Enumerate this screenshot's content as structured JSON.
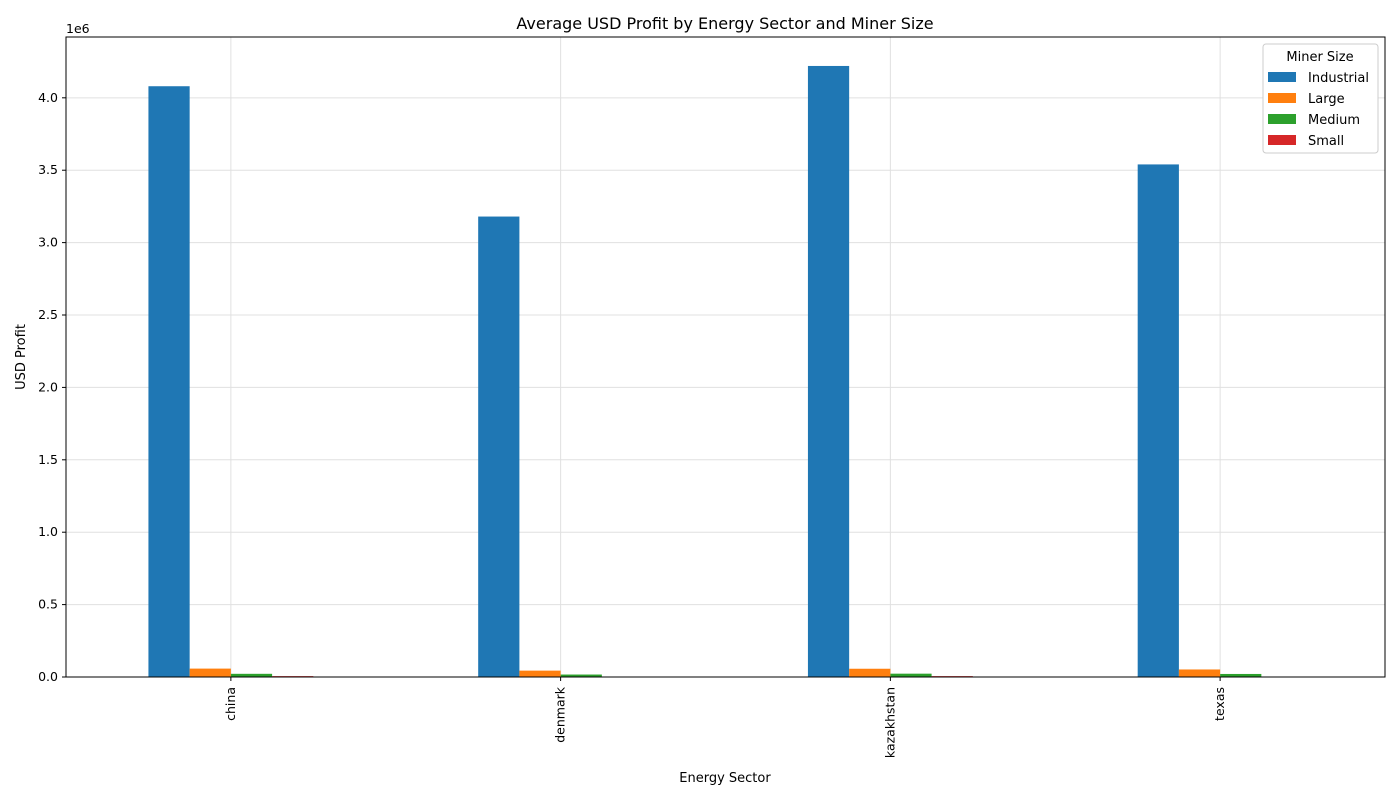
{
  "chart_data": {
    "type": "bar",
    "title": "Average USD Profit by Energy Sector and Miner Size",
    "xlabel": "Energy Sector",
    "ylabel": "USD Profit",
    "y_offset_label": "1e6",
    "categories": [
      "china",
      "denmark",
      "kazakhstan",
      "texas"
    ],
    "ylim": [
      0,
      4420000
    ],
    "yticks": [
      0,
      500000,
      1000000,
      1500000,
      2000000,
      2500000,
      3000000,
      3500000,
      4000000
    ],
    "ytick_labels": [
      "0.0",
      "0.5",
      "1.0",
      "1.5",
      "2.0",
      "2.5",
      "3.0",
      "3.5",
      "4.0"
    ],
    "grid": true,
    "legend": {
      "title": "Miner Size",
      "placement": "top-right"
    },
    "series": [
      {
        "name": "Industrial",
        "color": "#1f77b4",
        "values": [
          4080000,
          3180000,
          4220000,
          3540000
        ]
      },
      {
        "name": "Large",
        "color": "#ff7f0e",
        "values": [
          58000,
          44000,
          57000,
          52000
        ]
      },
      {
        "name": "Medium",
        "color": "#2ca02c",
        "values": [
          22000,
          17000,
          23000,
          21000
        ]
      },
      {
        "name": "Small",
        "color": "#d62728",
        "values": [
          6000,
          3000,
          6000,
          3000
        ]
      }
    ]
  }
}
